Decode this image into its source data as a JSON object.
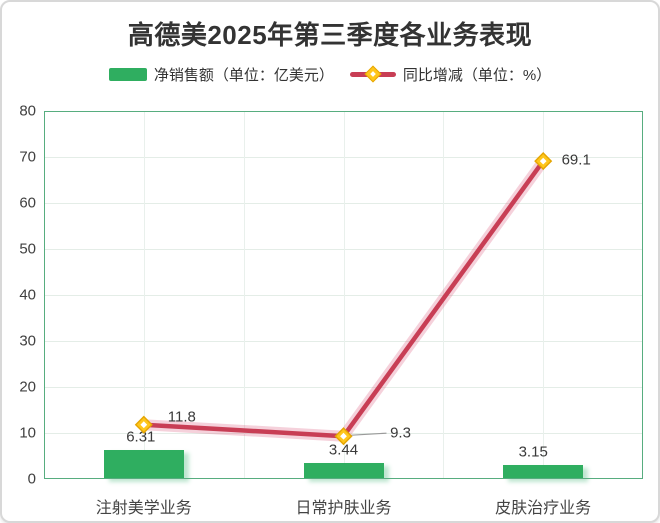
{
  "title": "高德美2025年第三季度各业务表现",
  "legend": [
    {
      "label": "净销售额（单位：亿美元）",
      "type": "bar",
      "color": "#2FAE60"
    },
    {
      "label": "同比增减（单位：%）",
      "type": "line",
      "color": "#C83E55",
      "marker_color": "#FFC61B"
    }
  ],
  "colors": {
    "bar_green": "#2FAE60",
    "line_red": "#C83E55",
    "marker_gold": "#FFC61B",
    "plot_border_green": "#57AD7F",
    "grid_gray": "#e4ede7"
  },
  "chart_data": {
    "type": "bar",
    "subtype": "bar+line combo",
    "title": "高德美2025年第三季度各业务表现",
    "categories": [
      "注射美学业务",
      "日常护肤业务",
      "皮肤治疗业务"
    ],
    "series": [
      {
        "name": "净销售额（单位：亿美元）",
        "type": "bar",
        "color": "#2FAE60",
        "values": [
          6.31,
          3.44,
          3.15
        ],
        "labels": [
          "6.31",
          "3.44",
          "3.15"
        ]
      },
      {
        "name": "同比增减（单位：%）",
        "type": "line",
        "color": "#C83E55",
        "marker": "diamond",
        "marker_color": "#FFC61B",
        "values": [
          11.8,
          9.3,
          69.1
        ],
        "labels": [
          "11.8",
          "9.3",
          "69.1"
        ]
      }
    ],
    "xlabel": "",
    "ylabel": "",
    "ylim": [
      0,
      80
    ],
    "ytick_step": 10,
    "yticks": [
      0,
      10,
      20,
      30,
      40,
      50,
      60,
      70,
      80
    ],
    "grid": true,
    "legend_position": "top"
  }
}
